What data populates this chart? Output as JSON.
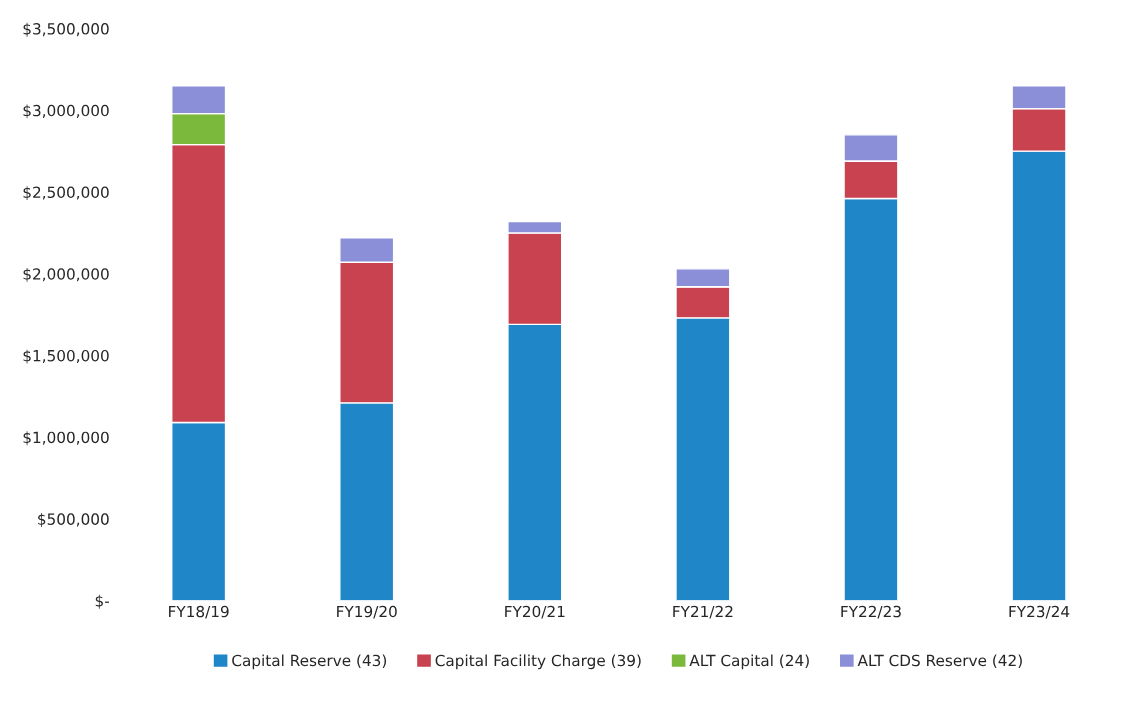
{
  "chart_data": {
    "type": "bar",
    "stacked": true,
    "categories": [
      "FY18/19",
      "FY19/20",
      "FY20/21",
      "FY21/22",
      "FY22/23",
      "FY23/24"
    ],
    "series": [
      {
        "name": "Capital Reserve (43)",
        "color": "#1f86c8",
        "values": [
          1090000,
          1210000,
          1690000,
          1730000,
          2460000,
          2750000
        ]
      },
      {
        "name": "Capital Facility Charge (39)",
        "color": "#c8424f",
        "values": [
          1700000,
          860000,
          560000,
          190000,
          230000,
          260000
        ]
      },
      {
        "name": "ALT Capital (24)",
        "color": "#7bb93c",
        "values": [
          190000,
          0,
          0,
          0,
          0,
          0
        ]
      },
      {
        "name": "ALT CDS Reserve (42)",
        "color": "#8a8fd8",
        "values": [
          170000,
          150000,
          70000,
          110000,
          160000,
          140000
        ]
      }
    ],
    "ylim": [
      0,
      3500000
    ],
    "yticks": [
      {
        "value": 0,
        "label": "$-"
      },
      {
        "value": 500000,
        "label": "$500,000"
      },
      {
        "value": 1000000,
        "label": "$1,000,000"
      },
      {
        "value": 1500000,
        "label": "$1,500,000"
      },
      {
        "value": 2000000,
        "label": "$2,000,000"
      },
      {
        "value": 2500000,
        "label": "$2,500,000"
      },
      {
        "value": 3000000,
        "label": "$3,000,000"
      },
      {
        "value": 3500000,
        "label": "$3,500,000"
      }
    ],
    "grid": false,
    "legend": "bottom"
  }
}
